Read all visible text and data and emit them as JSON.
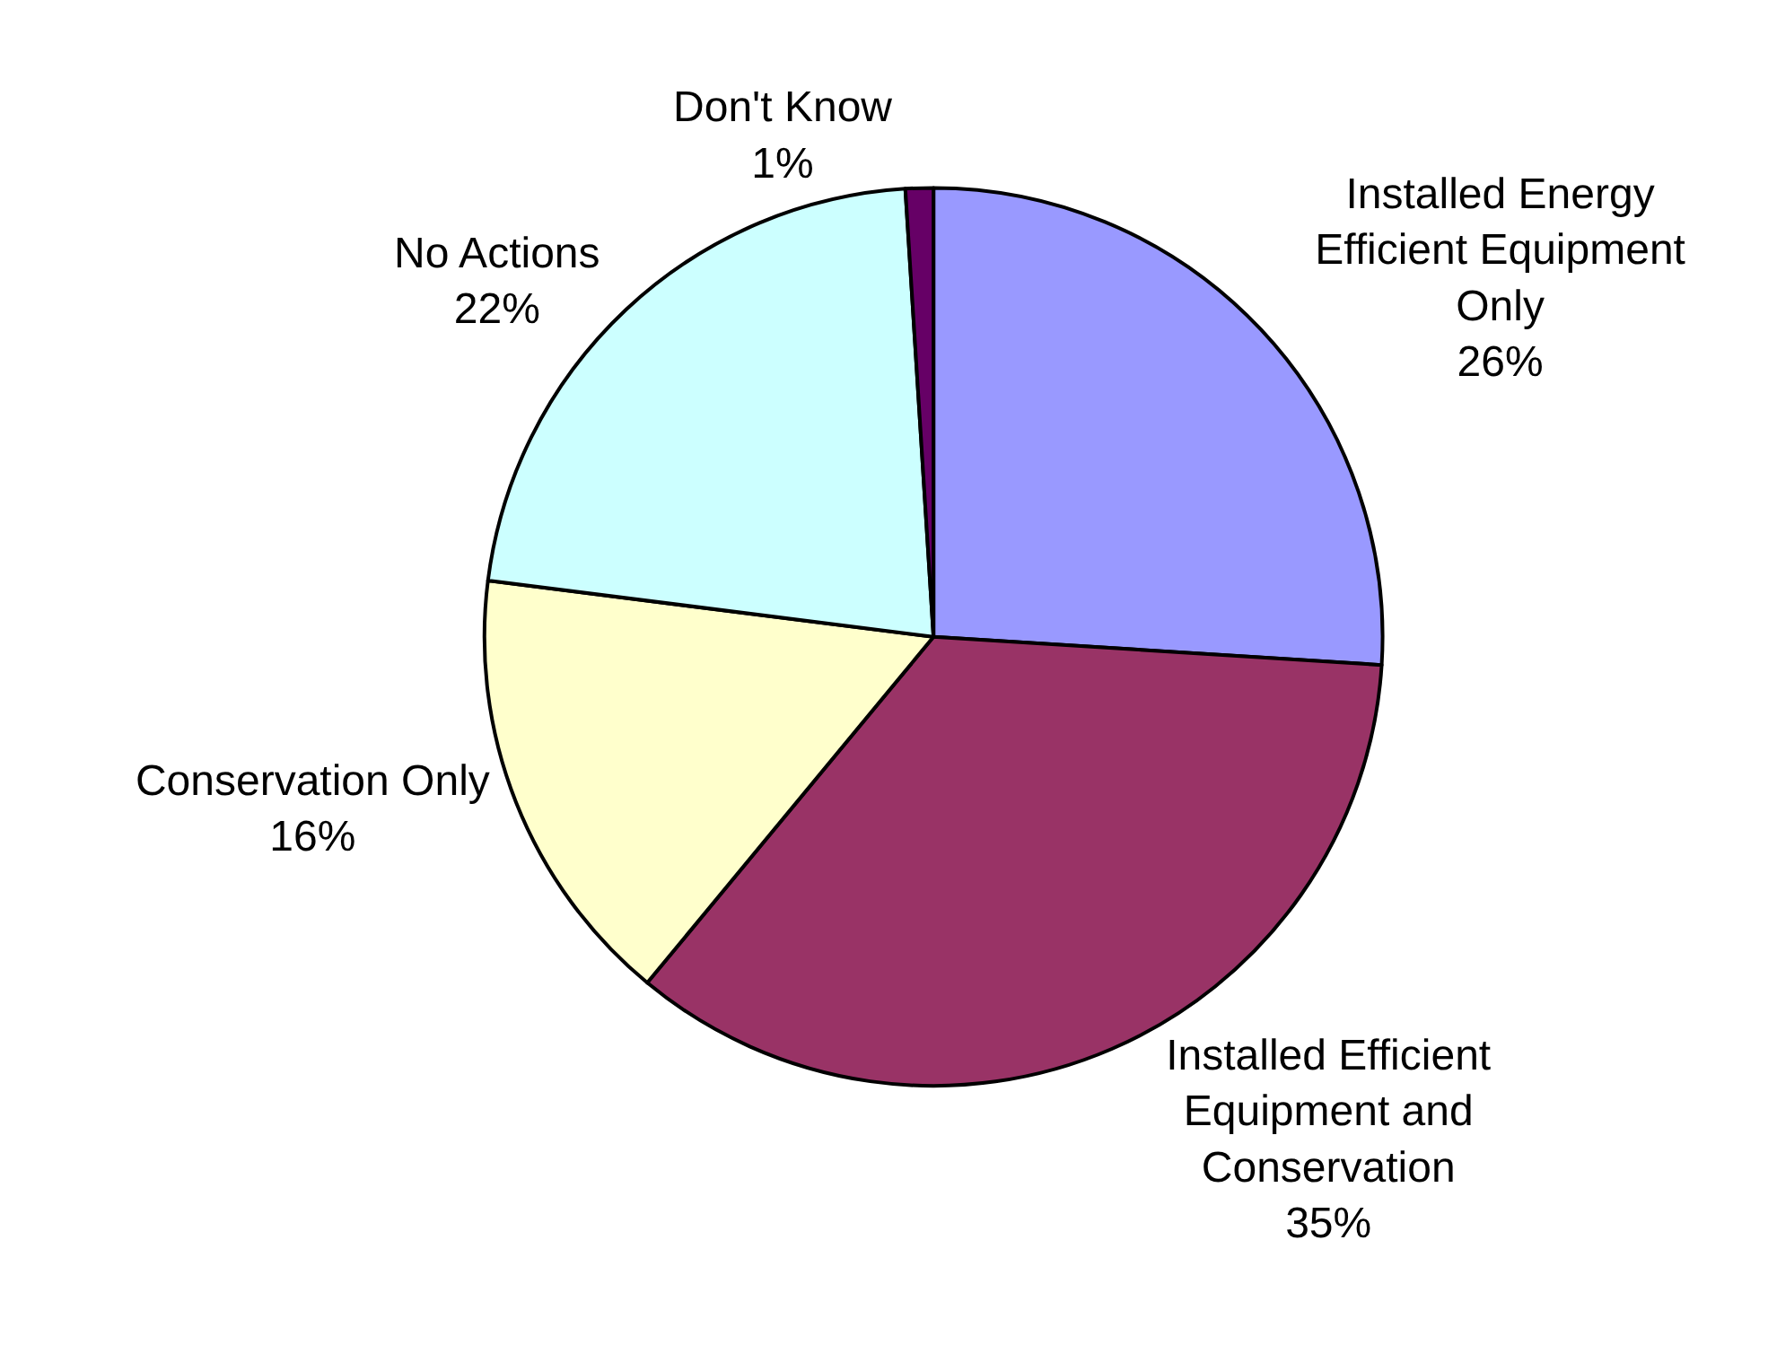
{
  "chart_data": {
    "type": "pie",
    "categories": [
      "Installed Energy Efficient Equipment Only",
      "Installed Efficient Equipment and Conservation",
      "Conservation Only",
      "No Actions",
      "Don't Know"
    ],
    "values": [
      26,
      35,
      16,
      22,
      1
    ],
    "value_labels": [
      "26%",
      "35%",
      "16%",
      "22%",
      "1%"
    ],
    "colors": [
      "#9999ff",
      "#993366",
      "#ffffcc",
      "#ccffff",
      "#660066"
    ],
    "legend": false
  }
}
